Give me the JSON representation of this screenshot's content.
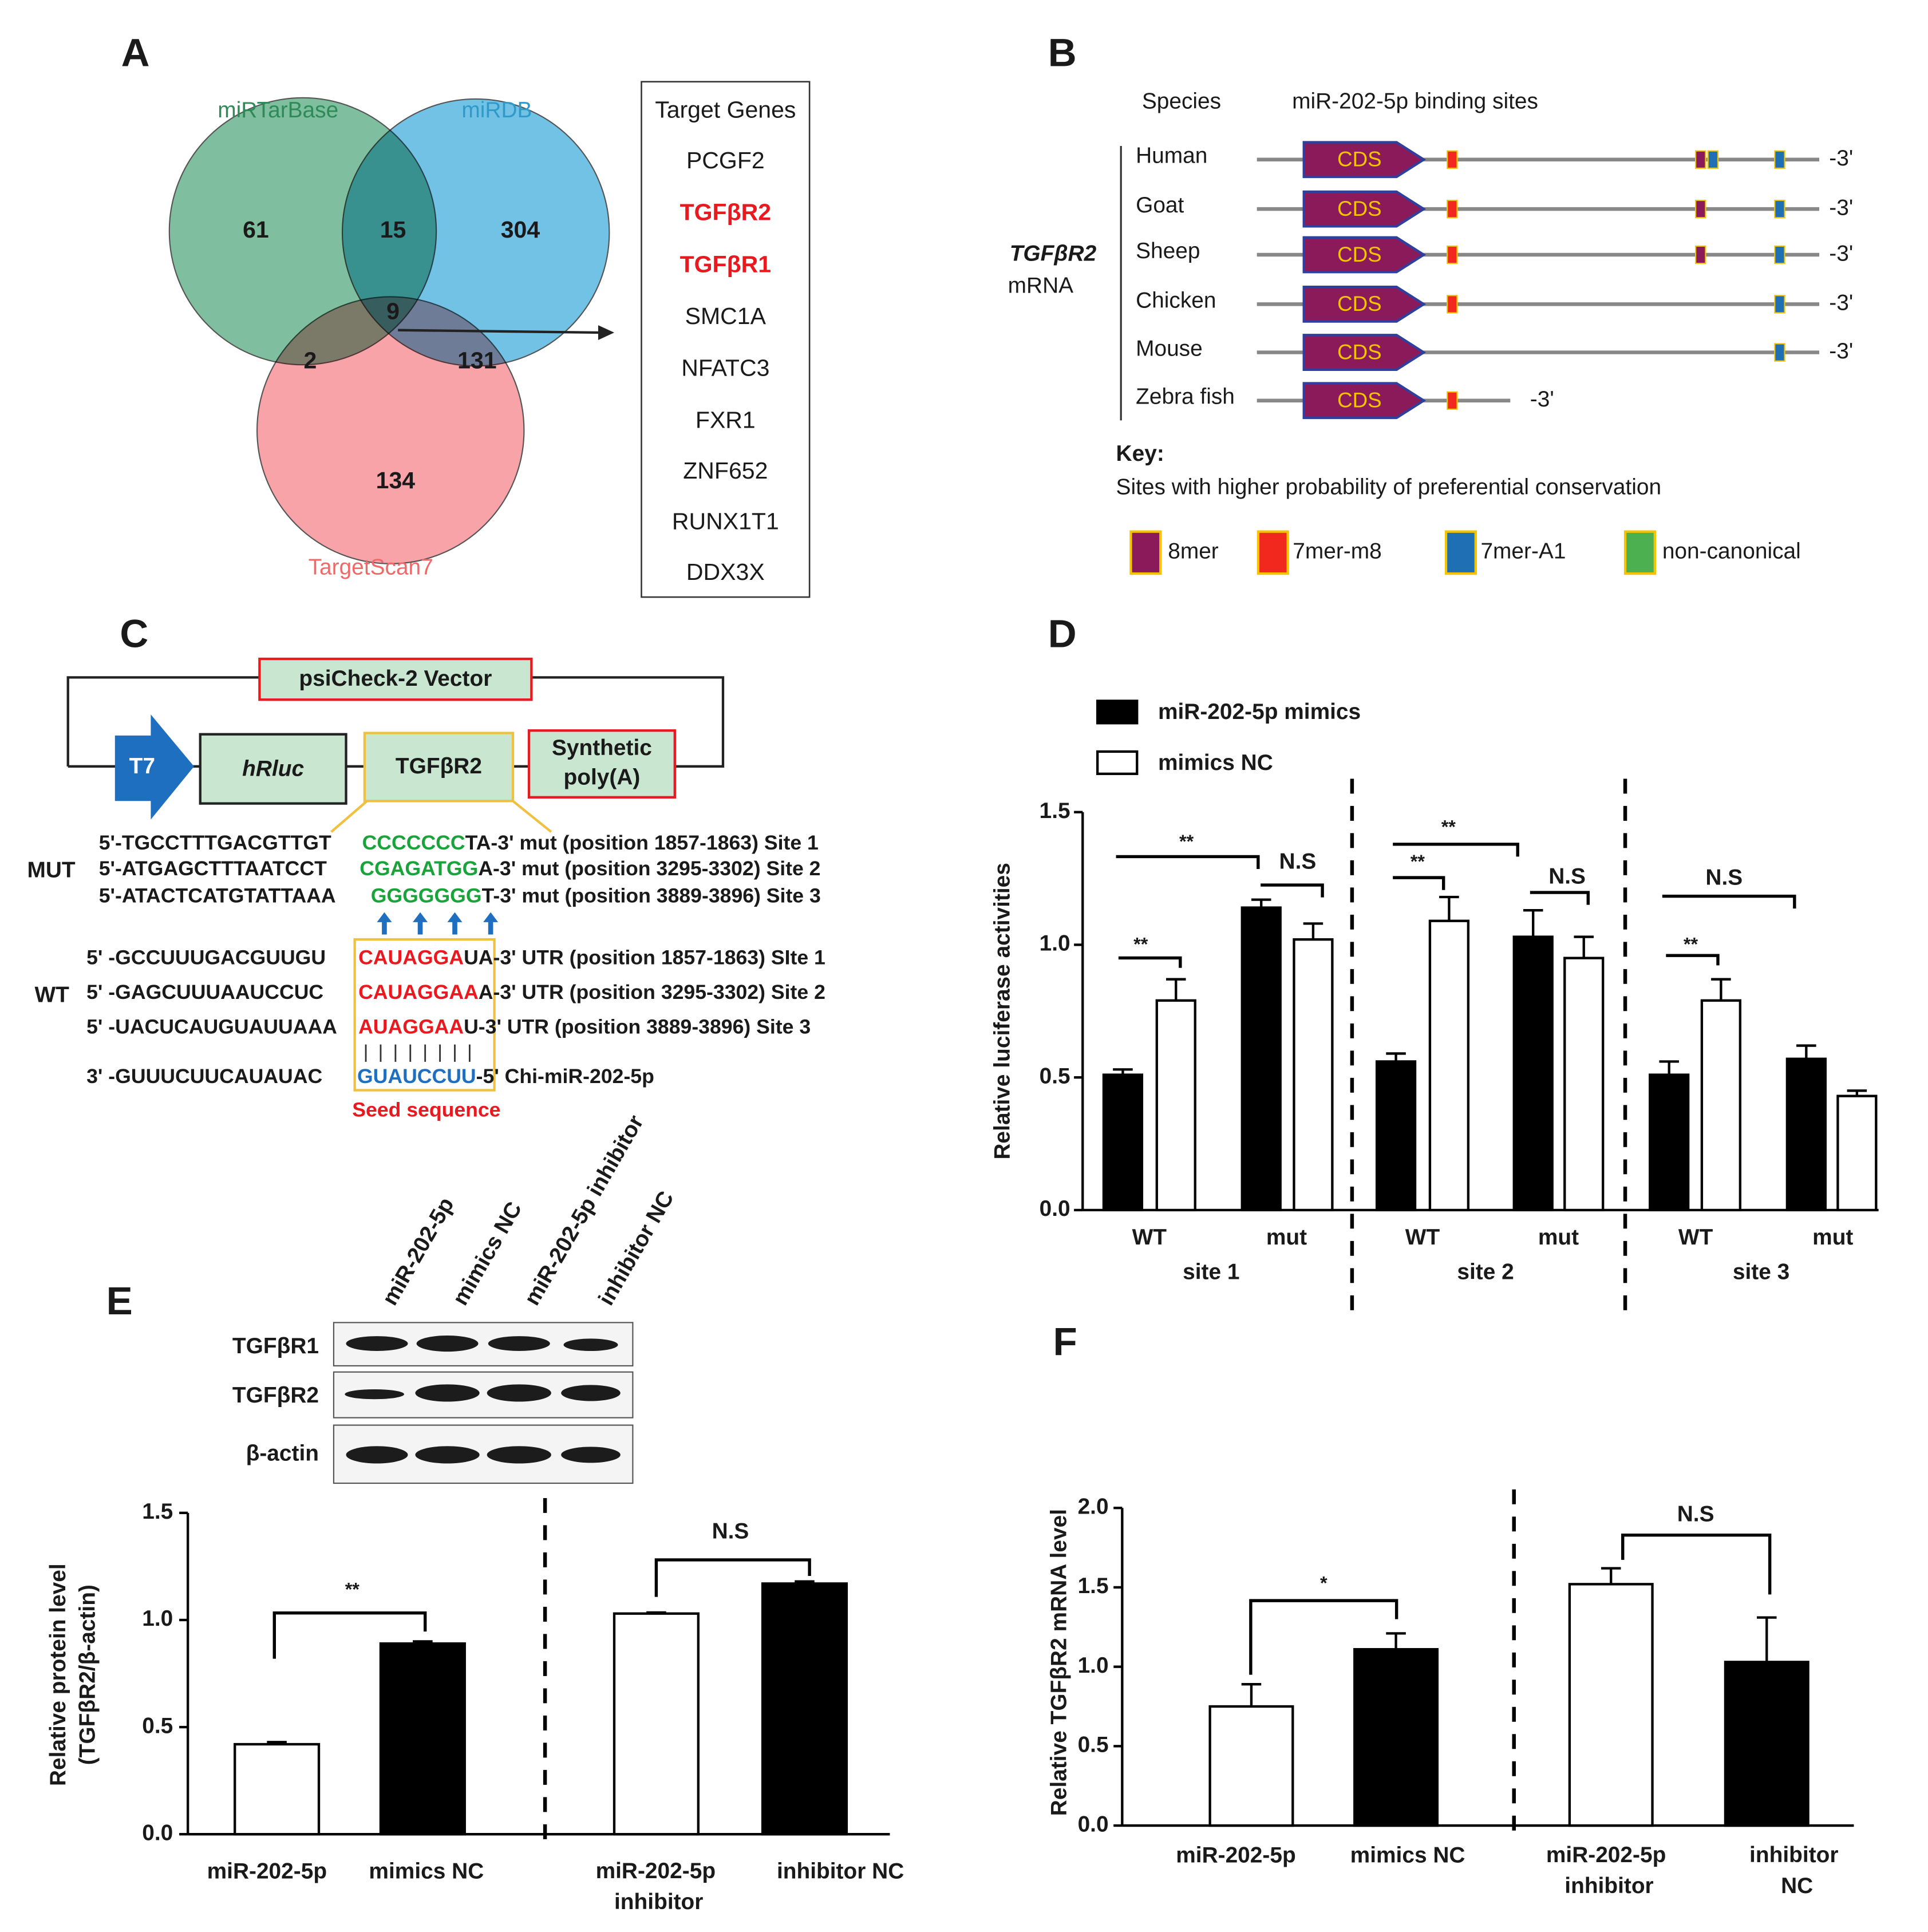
{
  "panel_labels": [
    "A",
    "B",
    "C",
    "D",
    "E",
    "F"
  ],
  "venn": {
    "sets": [
      "miRTarBase",
      "miRDB",
      "TargetScan7"
    ],
    "counts": [
      61,
      15,
      304,
      9,
      2,
      131,
      134
    ]
  },
  "target_table": {
    "header": "Target Genes",
    "rows": [
      "PCGF2",
      "TGFβR2",
      "TGFβR1",
      "SMC1A",
      "NFATC3",
      "FXR1",
      "ZNF652",
      "RUNX1T1",
      "DDX3X"
    ]
  },
  "binding_sites": {
    "species_header": "Species",
    "sites_header": "miR-202-5p binding sites",
    "gene": "TGFβR2",
    "molecule": "mRNA",
    "cds": "CDS",
    "end": "-3'",
    "species": [
      "Human",
      "Goat",
      "Sheep",
      "Chicken",
      "Mouse",
      "Zebra fish"
    ],
    "key_title": "Key:",
    "key_text": "Sites with higher probability of preferential conservation",
    "key": [
      {
        "name": "8mer",
        "color": "#8b1a5a"
      },
      {
        "name": "7mer-m8",
        "color": "#f0281e"
      },
      {
        "name": "7mer-A1",
        "color": "#1f6fb4"
      },
      {
        "name": "non-canonical",
        "color": "#4caf50"
      }
    ]
  },
  "construct": {
    "vector": "psiCheck-2 Vector",
    "promoter": "T7",
    "reporter": "hRluc",
    "insert": "TGFβR2",
    "polya": [
      "Synthetic",
      "poly(A)"
    ],
    "mut_label": "MUT",
    "wt_label": "WT",
    "mut": [
      [
        "5'-TGCCTTTGACGTTGT",
        "CCCCCCC",
        "TA-3' mut (position 1857-1863) Site 1"
      ],
      [
        "5'-ATGAGCTTTAATCCT",
        "CGAGATGG",
        "A-3' mut (position 3295-3302) Site 2"
      ],
      [
        "5'-ATACTCATGTATTAAA",
        "GGGGGGG",
        "T-3' mut (position 3889-3896) Site 3"
      ]
    ],
    "wt": [
      [
        "5' -GCCUUUGACGUUGU",
        "CAUAGGA",
        "UA-3' UTR (position 1857-1863) SIte 1"
      ],
      [
        "5' -GAGCUUUAAUCCUC",
        "CAUAGGAA",
        "A-3' UTR (position 3295-3302) Site 2"
      ],
      [
        "5' -UACUCAUGUAUUAAA",
        "AUAGGAA",
        "U-3' UTR (position 3889-3896) Site 3"
      ]
    ],
    "mirna": [
      "3' -GUUUCUUCAUAUAC",
      "GUAUCCUU",
      "-5' Chi-miR-202-5p"
    ],
    "seed": "Seed sequence"
  },
  "chart_data": [
    {
      "type": "bar",
      "ylabel": "Relative luciferase activities",
      "categories": [
        "WT",
        "mut",
        "WT",
        "mut",
        "WT",
        "mut"
      ],
      "groups": [
        "site 1",
        "site 2",
        "site 3"
      ],
      "series": [
        {
          "name": "miR-202-5p mimics",
          "color": "#000000",
          "values": [
            0.51,
            1.14,
            0.56,
            1.03,
            0.51,
            0.57
          ],
          "errors": [
            0.02,
            0.03,
            0.03,
            0.1,
            0.05,
            0.05
          ]
        },
        {
          "name": "mimics NC",
          "color": "#ffffff",
          "values": [
            0.79,
            1.02,
            1.09,
            0.95,
            0.79,
            0.43
          ],
          "errors": [
            0.08,
            0.06,
            0.09,
            0.08,
            0.08,
            0.02
          ]
        }
      ],
      "ylim": [
        0,
        1.5
      ],
      "yticks": [
        {
          "value": 0,
          "label": "0.0"
        },
        0.5,
        {
          "value": 1,
          "label": "1.0"
        },
        1.5
      ],
      "annotations": [
        "**",
        "**",
        "N.S",
        "**",
        "**",
        "N.S",
        "**",
        "N.S"
      ]
    },
    {
      "type": "bar",
      "ylabel": [
        "Relative protein level",
        "(TGFβR2/β-actin)"
      ],
      "categories": [
        "miR-202-5p",
        "mimics NC",
        "miR-202-5p inhibitor",
        "inhibitor NC"
      ],
      "values": [
        0.42,
        0.89,
        1.03,
        1.17
      ],
      "errors": [
        0.01,
        0.01,
        0.005,
        0.01
      ],
      "colors": [
        "#ffffff",
        "#000000",
        "#ffffff",
        "#000000"
      ],
      "ylim": [
        0,
        1.5
      ],
      "yticks": [
        {
          "value": 0,
          "label": "0.0"
        },
        0.5,
        {
          "value": 1,
          "label": "1.0"
        },
        1.5
      ],
      "annotations": [
        "**",
        "N.S"
      ],
      "blot": {
        "lanes": [
          "miR-202-5p",
          "mimics NC",
          "miR-202-5p inhibitor",
          "inhibitor NC"
        ],
        "rows": [
          "TGFβR1",
          "TGFβR2",
          "β-actin"
        ]
      }
    },
    {
      "type": "bar",
      "ylabel": "Relative TGFβR2 mRNA level",
      "categories": [
        "miR-202-5p",
        "mimics NC",
        "miR-202-5p inhibitor",
        "inhibitor NC"
      ],
      "values": [
        0.75,
        1.11,
        1.52,
        1.03
      ],
      "errors": [
        0.14,
        0.1,
        0.1,
        0.28
      ],
      "colors": [
        "#ffffff",
        "#000000",
        "#ffffff",
        "#000000"
      ],
      "ylim": [
        0,
        2
      ],
      "yticks": [
        {
          "value": 0,
          "label": "0.0"
        },
        0.5,
        {
          "value": 1,
          "label": "1.0"
        },
        1.5,
        {
          "value": 2,
          "label": "2.0"
        }
      ],
      "annotations": [
        "*",
        "N.S"
      ]
    }
  ]
}
